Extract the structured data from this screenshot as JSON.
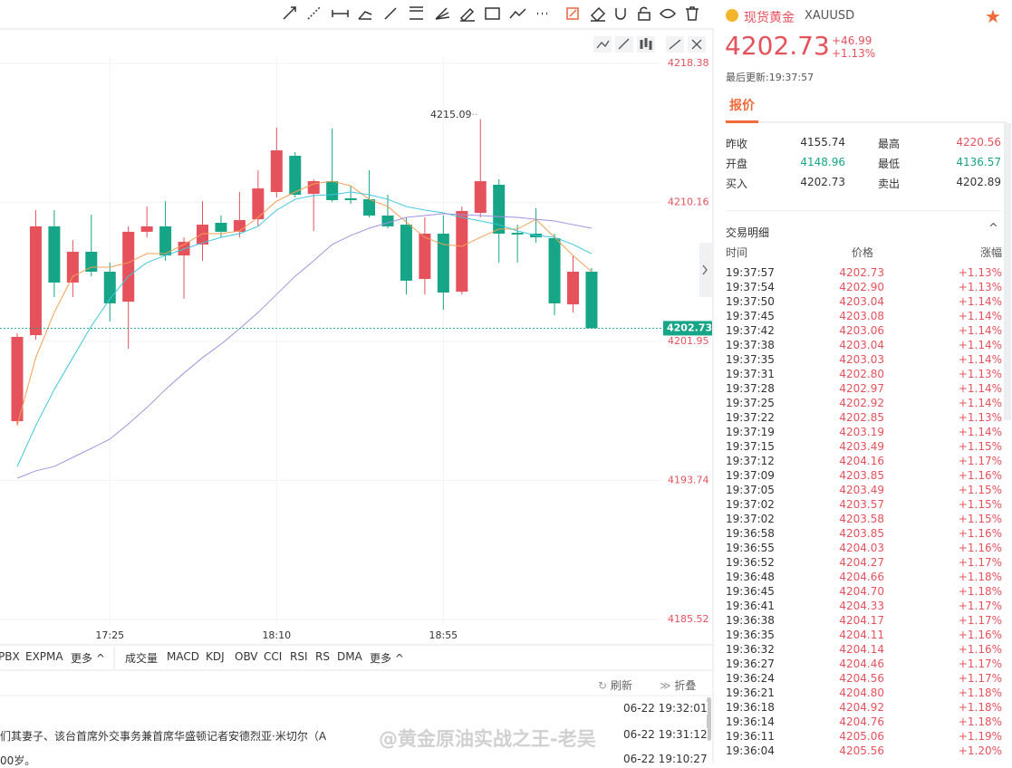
{
  "chart": {
    "type": "candlestick",
    "categories": [
      null,
      null,
      null,
      null,
      null,
      "17:25",
      null,
      null,
      null,
      null,
      null,
      null,
      null,
      null,
      "18:10",
      null,
      null,
      null,
      null,
      null,
      null,
      null,
      null,
      "18:55",
      null,
      null,
      null,
      null,
      null,
      null,
      null,
      null
    ],
    "candles": [
      {
        "open": 4197.24,
        "high": 4202.43,
        "low": 4197.0,
        "close": 4202.22
      },
      {
        "open": 4202.32,
        "high": 4209.71,
        "low": 4202.06,
        "close": 4208.75
      },
      {
        "open": 4208.75,
        "high": 4209.71,
        "low": 4204.57,
        "close": 4205.43
      },
      {
        "open": 4205.43,
        "high": 4207.94,
        "low": 4204.57,
        "close": 4207.25
      },
      {
        "open": 4207.25,
        "high": 4209.44,
        "low": 4205.8,
        "close": 4206.07
      },
      {
        "open": 4206.07,
        "high": 4206.61,
        "low": 4203.13,
        "close": 4204.2
      },
      {
        "open": 4204.3,
        "high": 4208.75,
        "low": 4201.52,
        "close": 4208.43
      },
      {
        "open": 4208.43,
        "high": 4209.92,
        "low": 4208.1,
        "close": 4208.75
      },
      {
        "open": 4208.75,
        "high": 4210.24,
        "low": 4206.71,
        "close": 4207.03
      },
      {
        "open": 4207.03,
        "high": 4208.1,
        "low": 4204.47,
        "close": 4207.84
      },
      {
        "open": 4207.68,
        "high": 4210.24,
        "low": 4206.71,
        "close": 4208.85
      },
      {
        "open": 4208.96,
        "high": 4209.39,
        "low": 4208.1,
        "close": 4208.43
      },
      {
        "open": 4208.43,
        "high": 4210.78,
        "low": 4208.1,
        "close": 4209.12
      },
      {
        "open": 4209.17,
        "high": 4212.06,
        "low": 4208.75,
        "close": 4210.99
      },
      {
        "open": 4210.78,
        "high": 4214.58,
        "low": 4210.46,
        "close": 4213.24
      },
      {
        "open": 4212.92,
        "high": 4213.14,
        "low": 4210.46,
        "close": 4210.62
      },
      {
        "open": 4210.67,
        "high": 4211.53,
        "low": 4208.48,
        "close": 4211.42
      },
      {
        "open": 4211.42,
        "high": 4214.53,
        "low": 4210.19,
        "close": 4210.3
      },
      {
        "open": 4210.41,
        "high": 4211.15,
        "low": 4210.08,
        "close": 4210.3
      },
      {
        "open": 4210.35,
        "high": 4212.06,
        "low": 4209.28,
        "close": 4209.39
      },
      {
        "open": 4209.39,
        "high": 4210.62,
        "low": 4208.64,
        "close": 4208.75
      },
      {
        "open": 4208.85,
        "high": 4209.28,
        "low": 4204.73,
        "close": 4205.54
      },
      {
        "open": 4205.64,
        "high": 4209.28,
        "low": 4204.73,
        "close": 4208.32
      },
      {
        "open": 4208.32,
        "high": 4209.39,
        "low": 4203.82,
        "close": 4204.84
      },
      {
        "open": 4204.89,
        "high": 4209.92,
        "low": 4204.73,
        "close": 4209.66
      },
      {
        "open": 4209.55,
        "high": 4215.09,
        "low": 4209.28,
        "close": 4211.42
      },
      {
        "open": 4211.21,
        "high": 4211.53,
        "low": 4206.61,
        "close": 4208.32
      },
      {
        "open": 4208.37,
        "high": 4208.85,
        "low": 4206.61,
        "close": 4208.27
      },
      {
        "open": 4208.32,
        "high": 4209.82,
        "low": 4207.78,
        "close": 4208.1
      },
      {
        "open": 4208.05,
        "high": 4208.32,
        "low": 4203.5,
        "close": 4204.2
      },
      {
        "open": 4204.14,
        "high": 4207.03,
        "low": 4203.66,
        "close": 4206.07
      },
      {
        "open": 4206.07,
        "high": 4206.29,
        "low": 4202.73,
        "close": 4202.73
      }
    ],
    "up_color": "#e5525c",
    "down_color": "#16a587",
    "ma": [
      {
        "color": "#f3a058",
        "values": [
          4196.97,
          4200.99,
          4203.66,
          4205.8,
          4206.34,
          4206.34,
          4206.61,
          4207.14,
          4207.14,
          4207.68,
          4208.32,
          4208.32,
          4208.48,
          4209.28,
          4210.24,
          4210.78,
          4211.26,
          4211.42,
          4211.15,
          4210.35,
          4209.92,
          4209.01,
          4208.1,
          4207.68,
          4207.57,
          4208.1,
          4208.59,
          4208.59,
          4209.17,
          4208.1,
          4207.03,
          4206.07
        ]
      },
      {
        "color": "#3fc6de",
        "values": [
          4194.56,
          4196.97,
          4199.11,
          4200.99,
          4202.86,
          4204.46,
          4205.8,
          4206.61,
          4207.03,
          4207.41,
          4207.78,
          4208.1,
          4208.32,
          4208.75,
          4209.71,
          4210.35,
          4210.57,
          4210.62,
          4210.78,
          4210.62,
          4210.35,
          4209.92,
          4209.71,
          4209.55,
          4209.28,
          4209.07,
          4208.85,
          4208.48,
          4208.21,
          4208.1,
          4207.68,
          4207.14
        ]
      },
      {
        "color": "#a094e0",
        "values": [
          4193.87,
          4194.3,
          4194.56,
          4195.1,
          4195.63,
          4196.17,
          4197.08,
          4198.04,
          4199.11,
          4200.08,
          4200.99,
          4201.79,
          4202.7,
          4203.66,
          4204.73,
          4205.8,
          4206.71,
          4207.68,
          4208.21,
          4208.64,
          4208.96,
          4209.28,
          4209.39,
          4209.5,
          4209.44,
          4209.39,
          4209.33,
          4209.28,
          4209.17,
          4209.07,
          4208.85,
          4208.64
        ]
      }
    ],
    "ylim": [
      4185.52,
      4218.38
    ],
    "yticks": [
      4218.38,
      4210.16,
      4201.95,
      4193.74,
      4185.52
    ],
    "last_price": 4202.73
  },
  "indicators": [
    "PBX",
    "EXPMA",
    "更多"
  ],
  "sub_indicators": [
    "成交量",
    "MACD",
    "KDJ",
    "OBV",
    "CCI",
    "RSI",
    "RS",
    "DMA",
    "更多"
  ],
  "news": {
    "refresh": "刷新",
    "collapse": "折叠",
    "items": [
      {
        "time": "06-22 19:32:01"
      },
      {
        "text": "们其妻子、该台首席外交事务兼首席华盛顿记者安德烈亚·米切尔（A",
        "time": "06-22 19:31:12"
      },
      {
        "text": "00岁。",
        "time": "06-22 19:10:27"
      }
    ]
  },
  "quote": {
    "name": "现货黄金",
    "code": "XAUUSD",
    "price": 4202.73,
    "change": "+46.99",
    "change_pct": "+1.13%",
    "updated": "最后更新:19:37:57",
    "tab": "报价",
    "fields": [
      [
        "昨收",
        4155.74,
        "最高",
        4220.56
      ],
      [
        "开盘",
        4148.96,
        "最低",
        4136.57
      ],
      [
        "买入",
        4202.73,
        "卖出",
        4202.89
      ]
    ]
  },
  "trades": {
    "title": "交易明细",
    "columns": [
      "时间",
      "价格",
      "涨幅"
    ],
    "rows": [
      [
        "19:37:57",
        "4202.73",
        "+1.13%"
      ],
      [
        "19:37:54",
        "4202.90",
        "+1.13%"
      ],
      [
        "19:37:50",
        "4203.04",
        "+1.14%"
      ],
      [
        "19:37:45",
        "4203.08",
        "+1.14%"
      ],
      [
        "19:37:42",
        "4203.06",
        "+1.14%"
      ],
      [
        "19:37:38",
        "4203.04",
        "+1.14%"
      ],
      [
        "19:37:35",
        "4203.03",
        "+1.14%"
      ],
      [
        "19:37:31",
        "4202.80",
        "+1.13%"
      ],
      [
        "19:37:28",
        "4202.97",
        "+1.14%"
      ],
      [
        "19:37:25",
        "4202.92",
        "+1.14%"
      ],
      [
        "19:37:22",
        "4202.85",
        "+1.13%"
      ],
      [
        "19:37:19",
        "4203.19",
        "+1.14%"
      ],
      [
        "19:37:15",
        "4203.49",
        "+1.15%"
      ],
      [
        "19:37:12",
        "4204.16",
        "+1.17%"
      ],
      [
        "19:37:09",
        "4203.85",
        "+1.16%"
      ],
      [
        "19:37:05",
        "4203.49",
        "+1.15%"
      ],
      [
        "19:37:02",
        "4203.57",
        "+1.15%"
      ],
      [
        "19:37:02",
        "4203.58",
        "+1.15%"
      ],
      [
        "19:36:58",
        "4203.85",
        "+1.16%"
      ],
      [
        "19:36:55",
        "4204.03",
        "+1.16%"
      ],
      [
        "19:36:52",
        "4204.27",
        "+1.17%"
      ],
      [
        "19:36:48",
        "4204.66",
        "+1.18%"
      ],
      [
        "19:36:45",
        "4204.70",
        "+1.18%"
      ],
      [
        "19:36:41",
        "4204.33",
        "+1.17%"
      ],
      [
        "19:36:38",
        "4204.17",
        "+1.17%"
      ],
      [
        "19:36:35",
        "4204.11",
        "+1.16%"
      ],
      [
        "19:36:32",
        "4204.14",
        "+1.16%"
      ],
      [
        "19:36:27",
        "4204.46",
        "+1.17%"
      ],
      [
        "19:36:24",
        "4204.56",
        "+1.17%"
      ],
      [
        "19:36:21",
        "4204.80",
        "+1.18%"
      ],
      [
        "19:36:18",
        "4204.92",
        "+1.18%"
      ],
      [
        "19:36:14",
        "4204.76",
        "+1.18%"
      ],
      [
        "19:36:11",
        "4205.06",
        "+1.19%"
      ],
      [
        "19:36:04",
        "4205.56",
        "+1.20%"
      ]
    ]
  },
  "watermark": "@黄金原油实战之王-老吴"
}
